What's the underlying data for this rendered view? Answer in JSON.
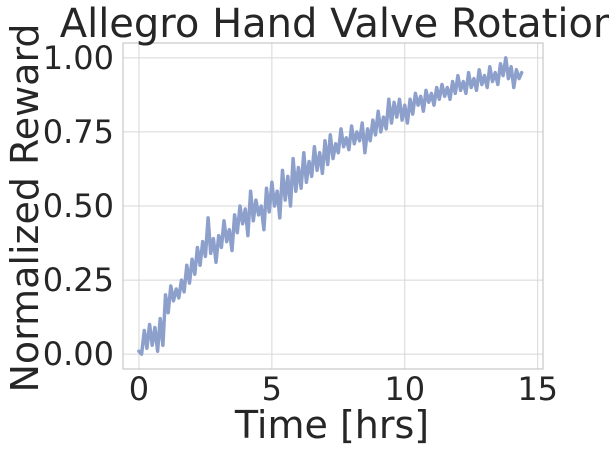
{
  "chart_data": {
    "type": "line",
    "title": "Allegro Hand Valve Rotation",
    "xlabel": "Time [hrs]",
    "ylabel": "Normalized Reward",
    "xlim": [
      -0.6,
      15.2
    ],
    "ylim": [
      -0.05,
      1.05
    ],
    "xticks": [
      0,
      5,
      10,
      15
    ],
    "xtick_labels": [
      "0",
      "5",
      "10",
      "15"
    ],
    "yticks": [
      0.0,
      0.25,
      0.5,
      0.75,
      1.0
    ],
    "ytick_labels": [
      "0.00",
      "0.25",
      "0.50",
      "0.75",
      "1.00"
    ],
    "grid": true,
    "legend": "none",
    "series_color": "#8da0cb",
    "series": [
      {
        "x": [
          0.0,
          0.1,
          0.2,
          0.3,
          0.4,
          0.5,
          0.6,
          0.7,
          0.8,
          0.9,
          1.0,
          1.1,
          1.2,
          1.3,
          1.4,
          1.5,
          1.6,
          1.7,
          1.8,
          1.9,
          2.0,
          2.1,
          2.2,
          2.3,
          2.4,
          2.5,
          2.6,
          2.7,
          2.8,
          2.9,
          3.0,
          3.1,
          3.2,
          3.3,
          3.4,
          3.5,
          3.6,
          3.7,
          3.8,
          3.9,
          4.0,
          4.1,
          4.2,
          4.3,
          4.4,
          4.5,
          4.6,
          4.7,
          4.8,
          4.9,
          5.0,
          5.1,
          5.2,
          5.3,
          5.4,
          5.5,
          5.6,
          5.7,
          5.8,
          5.9,
          6.0,
          6.1,
          6.2,
          6.3,
          6.4,
          6.5,
          6.6,
          6.7,
          6.8,
          6.9,
          7.0,
          7.1,
          7.2,
          7.3,
          7.4,
          7.5,
          7.6,
          7.7,
          7.8,
          7.9,
          8.0,
          8.1,
          8.2,
          8.3,
          8.4,
          8.5,
          8.6,
          8.7,
          8.8,
          8.9,
          9.0,
          9.1,
          9.2,
          9.3,
          9.4,
          9.5,
          9.6,
          9.7,
          9.8,
          9.9,
          10.0,
          10.1,
          10.2,
          10.3,
          10.4,
          10.5,
          10.6,
          10.7,
          10.8,
          10.9,
          11.0,
          11.1,
          11.2,
          11.3,
          11.4,
          11.5,
          11.6,
          11.7,
          11.8,
          11.9,
          12.0,
          12.1,
          12.2,
          12.3,
          12.4,
          12.5,
          12.6,
          12.7,
          12.8,
          12.9,
          13.0,
          13.1,
          13.2,
          13.3,
          13.4,
          13.5,
          13.6,
          13.7,
          13.8,
          13.9,
          14.0,
          14.1,
          14.2,
          14.3,
          14.4
        ],
        "y": [
          0.01,
          0.0,
          0.08,
          0.02,
          0.1,
          0.03,
          0.09,
          0.01,
          0.12,
          0.03,
          0.2,
          0.14,
          0.23,
          0.18,
          0.22,
          0.19,
          0.25,
          0.21,
          0.3,
          0.24,
          0.32,
          0.27,
          0.36,
          0.3,
          0.38,
          0.33,
          0.46,
          0.34,
          0.39,
          0.31,
          0.4,
          0.36,
          0.45,
          0.38,
          0.42,
          0.35,
          0.47,
          0.41,
          0.5,
          0.44,
          0.49,
          0.4,
          0.55,
          0.45,
          0.52,
          0.47,
          0.5,
          0.42,
          0.56,
          0.48,
          0.58,
          0.5,
          0.55,
          0.46,
          0.62,
          0.52,
          0.6,
          0.5,
          0.66,
          0.55,
          0.63,
          0.56,
          0.68,
          0.58,
          0.65,
          0.6,
          0.7,
          0.62,
          0.68,
          0.61,
          0.72,
          0.64,
          0.74,
          0.66,
          0.71,
          0.68,
          0.76,
          0.7,
          0.73,
          0.69,
          0.77,
          0.71,
          0.75,
          0.72,
          0.78,
          0.68,
          0.76,
          0.72,
          0.79,
          0.74,
          0.82,
          0.75,
          0.8,
          0.76,
          0.86,
          0.78,
          0.85,
          0.8,
          0.86,
          0.79,
          0.84,
          0.78,
          0.86,
          0.81,
          0.88,
          0.84,
          0.87,
          0.82,
          0.89,
          0.85,
          0.88,
          0.84,
          0.9,
          0.86,
          0.91,
          0.87,
          0.9,
          0.86,
          0.92,
          0.88,
          0.94,
          0.89,
          0.92,
          0.88,
          0.95,
          0.9,
          0.93,
          0.89,
          0.96,
          0.91,
          0.94,
          0.9,
          0.97,
          0.92,
          0.95,
          0.91,
          0.98,
          0.94,
          1.0,
          0.93,
          0.97,
          0.9,
          0.96,
          0.93,
          0.95
        ]
      }
    ]
  }
}
